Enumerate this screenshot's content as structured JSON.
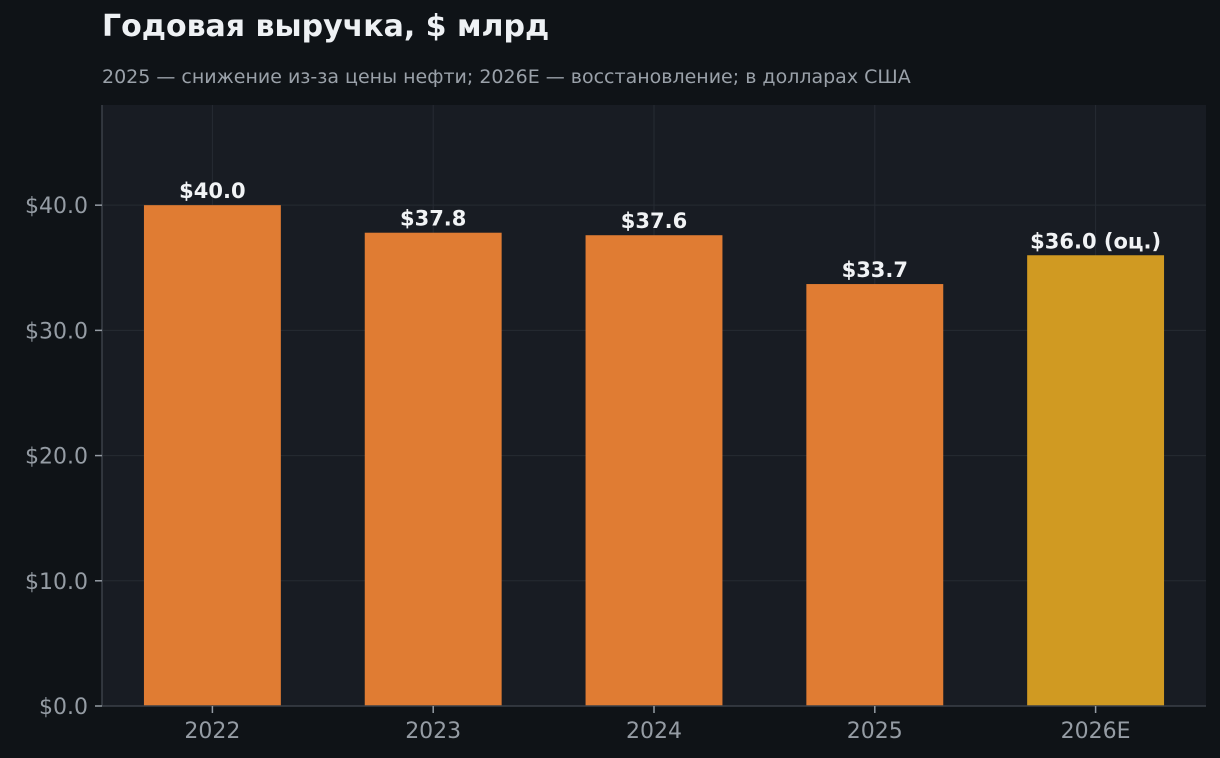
{
  "chart_data": {
    "type": "bar",
    "title": "Годовая выручка, $ млрд",
    "subtitle": "2025 — снижение из-за цены нефти; 2026E — восстановление; в долларах США",
    "categories": [
      "2022",
      "2023",
      "2024",
      "2025",
      "2026E"
    ],
    "values": [
      40.0,
      37.8,
      37.6,
      33.7,
      36.0
    ],
    "value_labels": [
      "$40.0",
      "$37.8",
      "$37.6",
      "$33.7",
      "$36.0 (оц.)"
    ],
    "estimate_flags": [
      false,
      false,
      false,
      false,
      true
    ],
    "ylim": [
      0,
      48
    ],
    "yticks": [
      0,
      10,
      20,
      30,
      40
    ],
    "ytick_labels": [
      "$0.0",
      "$10.0",
      "$20.0",
      "$30.0",
      "$40.0"
    ],
    "xlabel": "",
    "ylabel": "",
    "grid": true,
    "legend": "none",
    "colors": {
      "actual": "#e07c33",
      "estimate": "#d09a22",
      "background": "#0f1317",
      "plot_background": "#181c23",
      "grid": "#262b33",
      "axis": "#3a4048",
      "tick_text": "#959ca4",
      "label_text": "#f1f3f5"
    }
  }
}
